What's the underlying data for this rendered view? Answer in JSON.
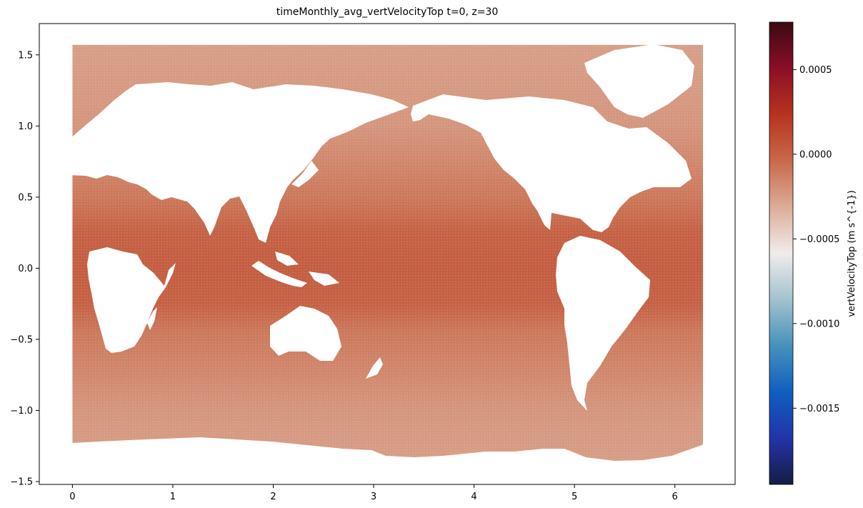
{
  "chart_data": {
    "type": "scatter",
    "title": "timeMonthly_avg_vertVelocityTop t=0, z=30",
    "xlabel": "",
    "ylabel": "",
    "xlim": [
      -0.33,
      6.6
    ],
    "ylim": [
      -1.52,
      1.72
    ],
    "xticks": [
      0,
      1,
      2,
      3,
      4,
      5,
      6
    ],
    "xtick_labels": [
      "0",
      "1",
      "2",
      "3",
      "4",
      "5",
      "6"
    ],
    "yticks": [
      1.5,
      1.0,
      0.5,
      0.0,
      -0.5,
      -1.0,
      -1.5
    ],
    "ytick_labels": [
      "1.5",
      "1.0",
      "0.5",
      "0.0",
      "−0.5",
      "−1.0",
      "−1.5"
    ],
    "grid": false,
    "colorbar": {
      "label": "vertVelocityTop (m s^{-1})",
      "range": [
        -0.00195,
        0.00078
      ],
      "ticks": [
        0.0005,
        0.0,
        -0.0005,
        -0.001,
        -0.0015
      ],
      "tick_labels": [
        "0.0005",
        "0.0000",
        "−0.0005",
        "−0.0010",
        "−0.0015"
      ],
      "colormap": "balance",
      "stops": [
        "#151d44",
        "#2334a8",
        "#0f5fbf",
        "#4791bb",
        "#a2c2d0",
        "#f1eceb",
        "#dcac97",
        "#c8694a",
        "#b6331f",
        "#8a0f26",
        "#3c0912"
      ]
    },
    "field": {
      "x_range": [
        0,
        6.28
      ],
      "y_range": [
        -1.38,
        1.57
      ],
      "values_by_latitude": [
        {
          "y": 1.5,
          "value": -0.00025
        },
        {
          "y": 1.0,
          "value": -0.00022
        },
        {
          "y": 0.5,
          "value": -0.0001
        },
        {
          "y": 0.25,
          "value": 0.0
        },
        {
          "y": 0.0,
          "value": 2e-05
        },
        {
          "y": -0.25,
          "value": 0.0
        },
        {
          "y": -0.45,
          "value": -0.0001
        },
        {
          "y": -1.0,
          "value": -0.00022
        },
        {
          "y": -1.35,
          "value": -0.00025
        }
      ],
      "land_color": "#ffffff"
    }
  }
}
